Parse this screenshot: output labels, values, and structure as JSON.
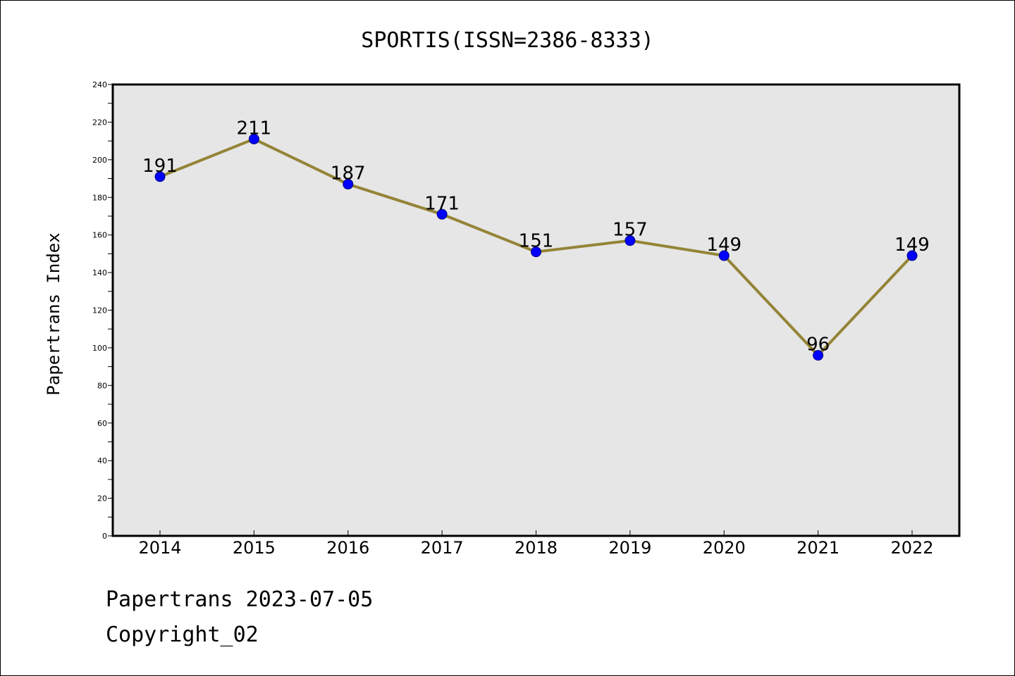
{
  "footer": {
    "line1": "Papertrans 2023-07-05",
    "line2": "Copyright_02"
  },
  "colors": {
    "plot_background": "#e6e6e6",
    "line": "#948437",
    "marker": "#0000ff",
    "marker_edge": "#000080"
  },
  "chart_data": {
    "type": "line",
    "title": "SPORTIS(ISSN=2386-8333)",
    "xlabel": "",
    "ylabel": "Papertrans Index",
    "categories": [
      "2014",
      "2015",
      "2016",
      "2017",
      "2018",
      "2019",
      "2020",
      "2021",
      "2022"
    ],
    "series": [
      {
        "values": [
          191,
          211,
          187,
          171,
          151,
          157,
          149,
          96,
          149
        ]
      }
    ],
    "ylim": [
      0,
      240
    ],
    "yticks": [
      0,
      20,
      40,
      60,
      80,
      100,
      120,
      140,
      160,
      180,
      200,
      220,
      240
    ],
    "data_labels": [
      "191",
      "211",
      "187",
      "171",
      "151",
      "157",
      "149",
      "96",
      "149"
    ],
    "grid": false,
    "legend": "none"
  }
}
